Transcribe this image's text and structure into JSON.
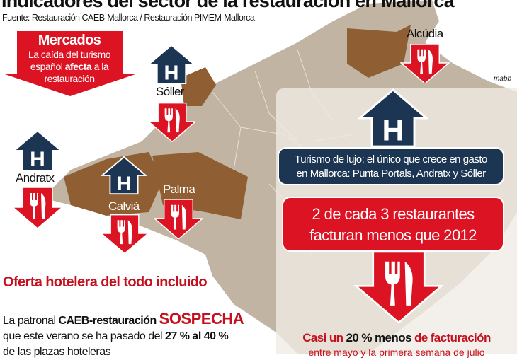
{
  "title": "Indicadores del sector de la restauración en Mallorca",
  "source": "Fuente: Restauración CAEB-Mallorca / Restauración PIMEM-Mallorca",
  "credit": "mabb",
  "mercados": {
    "heading": "Mercados",
    "line1": "La caída del turismo",
    "line2_pre": "español ",
    "line2_bold": "afecta",
    "line2_post": " a la",
    "line3": "restauración"
  },
  "places": {
    "soller": "Sóller",
    "andratx": "Andratx",
    "calvia": "Calvià",
    "palma": "Palma",
    "alcudia": "Alcúdia"
  },
  "luxury": {
    "line1": "Turismo de lujo: el único que crece en gasto",
    "line2": "en Mallorca: Punta Portals, Andratx y Sóller"
  },
  "restaurants": {
    "line1": "2 de cada 3 restaurantes",
    "line2": "facturan menos que 2012"
  },
  "revenue": {
    "pre": "Casi un ",
    "bold": "20 % menos",
    "post": " de facturación",
    "sub": "entre mayo y la primera semana de julio"
  },
  "hotel": {
    "heading": "Oferta hotelera del todo incluido",
    "p1_pre": "La patronal ",
    "p1_bold": "CAEB-restauración",
    "p1_red": "SOSPECHA",
    "p2_pre": "que este verano se ha pasado del ",
    "p2_bold": "27 % al 40 %",
    "p3": "de las plazas hoteleras"
  },
  "icons": {
    "hotel": "hotel-house-icon",
    "restaurant": "fork-knife-down-arrow-icon"
  },
  "colors": {
    "red": "#dc1323",
    "navy": "#1c3553",
    "map": "#c2b4a3",
    "highlight": "#8f5f33"
  }
}
